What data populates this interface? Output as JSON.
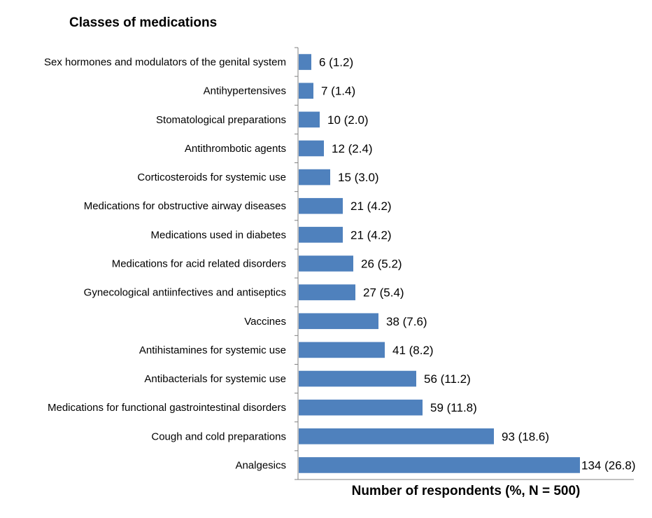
{
  "chart_data": {
    "type": "bar",
    "orientation": "horizontal",
    "ylabel": "Classes of medications",
    "xlabel": "Number of respondents (%, N = 500)",
    "categories": [
      "Sex hormones and modulators of the genital system",
      "Antihypertensives",
      "Stomatological preparations",
      "Antithrombotic agents",
      "Corticosteroids for systemic use",
      "Medications for obstructive airway diseases",
      "Medications used in diabetes",
      "Medications for acid related disorders",
      "Gynecological antiinfectives and antiseptics",
      "Vaccines",
      "Antihistamines for systemic use",
      "Antibacterials for systemic use",
      "Medications for functional gastrointestinal disorders",
      "Cough and cold preparations",
      "Analgesics"
    ],
    "values": [
      6,
      7,
      10,
      12,
      15,
      21,
      21,
      26,
      27,
      38,
      41,
      56,
      59,
      93,
      134
    ],
    "percents": [
      "1.2",
      "1.4",
      "2.0",
      "2.4",
      "3.0",
      "4.2",
      "4.2",
      "5.2",
      "5.4",
      "7.6",
      "8.2",
      "11.2",
      "11.8",
      "18.6",
      "26.8"
    ],
    "data_labels": [
      "6 (1.2)",
      "7 (1.4)",
      "10 (2.0)",
      "12 (2.4)",
      "15 (3.0)",
      "21 (4.2)",
      "21 (4.2)",
      "26 (5.2)",
      "27 (5.4)",
      "38 (7.6)",
      "41 (8.2)",
      "56 (11.2)",
      "59 (11.8)",
      "93 (18.6)",
      "134 (26.8)"
    ],
    "xlim": [
      0,
      160
    ],
    "grid": false,
    "legend": "none",
    "bar_color": "#4f81bd"
  }
}
